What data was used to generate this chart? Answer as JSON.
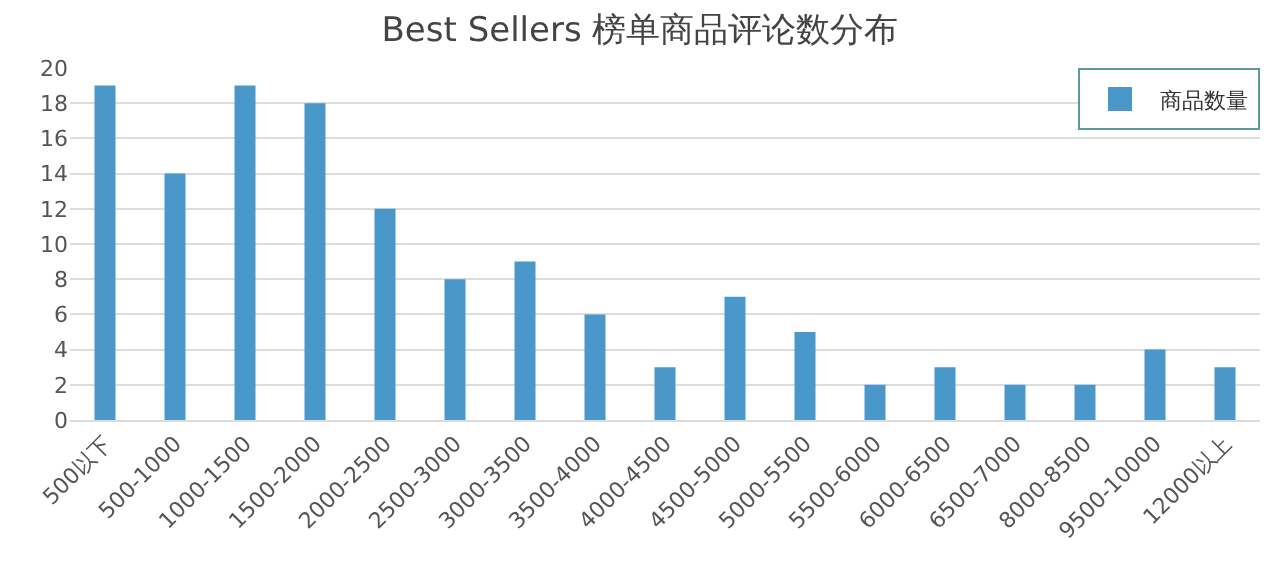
{
  "chart_data": {
    "type": "bar",
    "title": "Best Sellers 榜单商品评论数分布",
    "categories": [
      "500以下",
      "500-1000",
      "1000-1500",
      "1500-2000",
      "2000-2500",
      "2500-3000",
      "3000-3500",
      "3500-4000",
      "4000-4500",
      "4500-5000",
      "5000-5500",
      "5500-6000",
      "6000-6500",
      "6500-7000",
      "8000-8500",
      "9500-10000",
      "12000以上"
    ],
    "series": [
      {
        "name": "商品数量",
        "color": "#4a98c9",
        "values": [
          19,
          14,
          19,
          18,
          12,
          8,
          9,
          6,
          3,
          7,
          5,
          2,
          3,
          2,
          2,
          4,
          3
        ]
      }
    ],
    "ylim": [
      0,
      20
    ],
    "yticks": [
      0,
      2,
      4,
      6,
      8,
      10,
      12,
      14,
      16,
      18,
      20
    ],
    "grid": "y",
    "legend": "top right"
  }
}
